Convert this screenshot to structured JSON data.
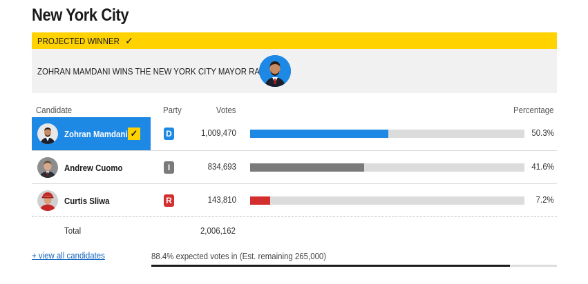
{
  "title": "New York City",
  "banner": {
    "label": "PROJECTED WINNER",
    "check": "✓"
  },
  "headline": "ZOHRAN MAMDANI WINS THE NEW YORK CITY MAYOR RACE",
  "columns": {
    "candidate": "Candidate",
    "party": "Party",
    "votes": "Votes",
    "percentage": "Percentage"
  },
  "candidates": [
    {
      "name": "Zohran Mamdani",
      "party": "D",
      "party_color": "#1e88e5",
      "votes": "1,009,470",
      "pct": "50.3%",
      "share": 50.3,
      "bar_color": "#1e88e5",
      "winner": true
    },
    {
      "name": "Andrew Cuomo",
      "party": "I",
      "party_color": "#7a7a7a",
      "votes": "834,693",
      "pct": "41.6%",
      "share": 41.6,
      "bar_color": "#7a7a7a",
      "winner": false
    },
    {
      "name": "Curtis Sliwa",
      "party": "R",
      "party_color": "#d32f2f",
      "votes": "143,810",
      "pct": "7.2%",
      "share": 7.2,
      "bar_color": "#d32f2f",
      "winner": false
    }
  ],
  "winner_check": "✓",
  "total": {
    "label": "Total",
    "value": "2,006,162"
  },
  "view_all": "+ view all candidates",
  "expected": {
    "text": "88.4% expected votes in (Est. remaining 265,000)",
    "share": 88.4
  },
  "colors": {
    "accent": "#ffd200",
    "winner_bg": "#1e88e5",
    "track": "#dcdcdc"
  }
}
